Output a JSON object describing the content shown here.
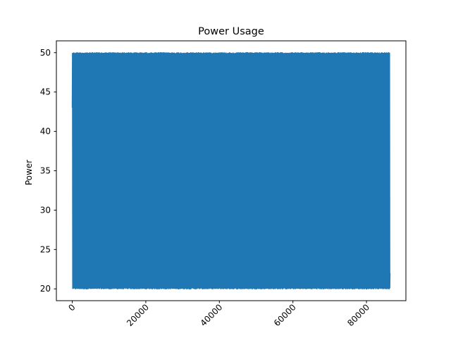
{
  "chart_data": {
    "type": "line",
    "title": "Power Usage",
    "xlabel": "",
    "ylabel": "Power",
    "xlim": [
      -4320,
      90720
    ],
    "ylim": [
      18.5,
      51.5
    ],
    "x_ticks": [
      0,
      20000,
      40000,
      60000,
      80000
    ],
    "x_tick_labels": [
      "0",
      "20000",
      "40000",
      "60000",
      "80000"
    ],
    "y_ticks": [
      20,
      25,
      30,
      35,
      40,
      45,
      50
    ],
    "y_tick_labels": [
      "20",
      "25",
      "30",
      "35",
      "40",
      "45",
      "50"
    ],
    "x_tick_rotation_deg": 45,
    "grid": false,
    "series": [
      {
        "color": "#1f77b4",
        "x_start": 0,
        "x_end": 86399,
        "n_points": 86400,
        "value_min": 20,
        "value_max": 50,
        "first_value": 43,
        "last_value": 22
      }
    ]
  }
}
